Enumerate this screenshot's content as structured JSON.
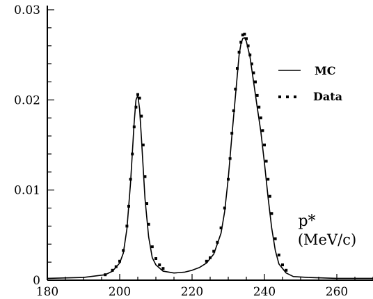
{
  "chart_data": {
    "type": "line",
    "title": "",
    "xlabel": "p*",
    "xunit": "(MeV/c)",
    "ylabel": "",
    "xlim": [
      180,
      270
    ],
    "ylim": [
      0,
      0.03
    ],
    "xticks": [
      "180",
      "200",
      "220",
      "240",
      "260"
    ],
    "yticks": [
      "0",
      "0.01",
      "0.02",
      "0.03"
    ],
    "grid": false,
    "legend_position": "top-right",
    "series": [
      {
        "name": "MC",
        "style": "solid-line",
        "color": "#000000",
        "x": [
          180,
          190,
          196,
          198,
          200,
          201,
          202,
          203,
          204,
          204.5,
          205,
          205.5,
          206,
          207,
          208,
          209,
          210,
          212,
          215,
          218,
          220,
          222,
          224,
          226,
          228,
          229,
          230,
          231,
          232,
          233,
          233.5,
          234,
          234.5,
          235,
          236,
          237,
          238,
          239,
          240,
          241,
          242,
          243,
          244,
          246,
          248,
          252,
          260,
          270
        ],
        "y": [
          0.0002,
          0.0003,
          0.0006,
          0.001,
          0.0019,
          0.003,
          0.0057,
          0.0108,
          0.0175,
          0.02,
          0.0205,
          0.019,
          0.0158,
          0.009,
          0.0048,
          0.0025,
          0.0017,
          0.001,
          0.0008,
          0.0009,
          0.0011,
          0.0014,
          0.0019,
          0.0029,
          0.0052,
          0.0076,
          0.0113,
          0.016,
          0.0205,
          0.025,
          0.0262,
          0.0268,
          0.0269,
          0.0265,
          0.0248,
          0.022,
          0.0192,
          0.0165,
          0.013,
          0.0092,
          0.0058,
          0.0033,
          0.0018,
          0.0008,
          0.0004,
          0.0003,
          0.0002,
          0.0002
        ]
      },
      {
        "name": "Data",
        "style": "dotted-markers",
        "color": "#000000",
        "x": [
          196,
          198,
          199,
          200,
          201,
          202,
          202.5,
          203,
          203.5,
          204,
          204.5,
          205,
          205.5,
          206,
          206.5,
          207,
          207.5,
          208,
          209,
          210,
          211,
          212,
          224,
          225,
          226,
          227,
          228,
          229,
          230,
          230.5,
          231,
          231.5,
          232,
          232.5,
          233,
          233.5,
          234,
          234.5,
          235,
          235.5,
          236,
          236.5,
          237,
          237.5,
          238,
          238.5,
          239,
          239.5,
          240,
          240.5,
          241,
          241.5,
          242,
          243,
          244,
          245,
          246
        ],
        "y": [
          0.0006,
          0.0011,
          0.0015,
          0.0021,
          0.0033,
          0.006,
          0.0082,
          0.0112,
          0.014,
          0.017,
          0.0192,
          0.0206,
          0.0202,
          0.0182,
          0.015,
          0.0115,
          0.0085,
          0.0062,
          0.0037,
          0.0024,
          0.0017,
          0.0013,
          0.0021,
          0.0025,
          0.0032,
          0.0042,
          0.0058,
          0.008,
          0.0112,
          0.0135,
          0.0163,
          0.0188,
          0.0212,
          0.0235,
          0.0253,
          0.0264,
          0.0272,
          0.0273,
          0.0268,
          0.026,
          0.025,
          0.024,
          0.023,
          0.022,
          0.0205,
          0.0192,
          0.018,
          0.0166,
          0.015,
          0.0132,
          0.0112,
          0.0093,
          0.0074,
          0.0046,
          0.0028,
          0.0017,
          0.0011
        ]
      }
    ]
  },
  "legend": {
    "mc_label": "MC",
    "data_label": "Data"
  }
}
